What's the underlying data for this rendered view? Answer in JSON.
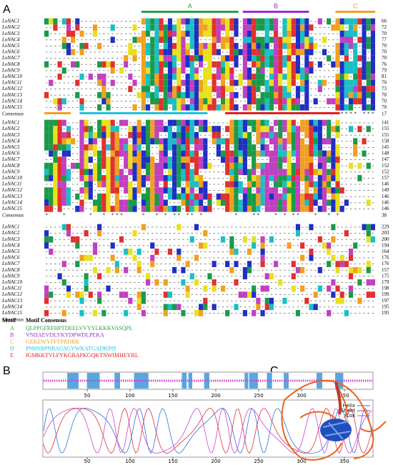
{
  "panels": {
    "a": "A",
    "b": "B",
    "c": "C"
  },
  "alignment": {
    "names": [
      "LoNAC1",
      "LoNAC2",
      "LoNAC3",
      "LoNAC4",
      "LoNAC5",
      "LoNAC6",
      "LoNAC7",
      "LoNAC8",
      "LoNAC9",
      "LoNAC10",
      "LoNAC11",
      "LoNAC12",
      "LoNAC13",
      "LoNAC14",
      "LoNAC15"
    ],
    "consensus": "Consensus",
    "blocks": [
      {
        "ends": [
          66,
          72,
          70,
          77,
          70,
          70,
          70,
          76,
          79,
          81,
          70,
          73,
          70,
          70,
          70
        ],
        "consensus_end": 17
      },
      {
        "ends": [
          141,
          155,
          155,
          158,
          145,
          148,
          147,
          152,
          152,
          157,
          146,
          149,
          146,
          146,
          146
        ],
        "consensus_end": 38
      },
      {
        "ends": [
          229,
          203,
          200,
          194,
          164,
          176,
          176,
          157,
          175,
          179,
          198,
          199,
          197,
          195,
          195
        ]
      }
    ]
  },
  "motif_labels": [
    "A",
    "B",
    "C",
    "D",
    "E"
  ],
  "motifs": {
    "header": [
      "Motif",
      "Motif Consensus"
    ],
    "rows": [
      {
        "id": "A",
        "seq": "QLPPGFRFHPTDEELVVYYLKKKVASQPL"
      },
      {
        "id": "B",
        "seq": "VNIIAEVDLYKYDPWDLPEKA"
      },
      {
        "id": "C",
        "seq": "GEKEWYFFTPRDRK"
      },
      {
        "id": "D",
        "seq": "PNHSRPNRAGSGYWKATGADKPIS"
      },
      {
        "id": "E",
        "seq": "IGMKKTVLFYKGRAPKGQKTNWIMHEYRL"
      }
    ]
  },
  "structure_plot": {
    "xticks": [
      50,
      100,
      150,
      200,
      250,
      300,
      350
    ],
    "legend": [
      "Helix",
      "Sheet",
      "Coil"
    ]
  }
}
